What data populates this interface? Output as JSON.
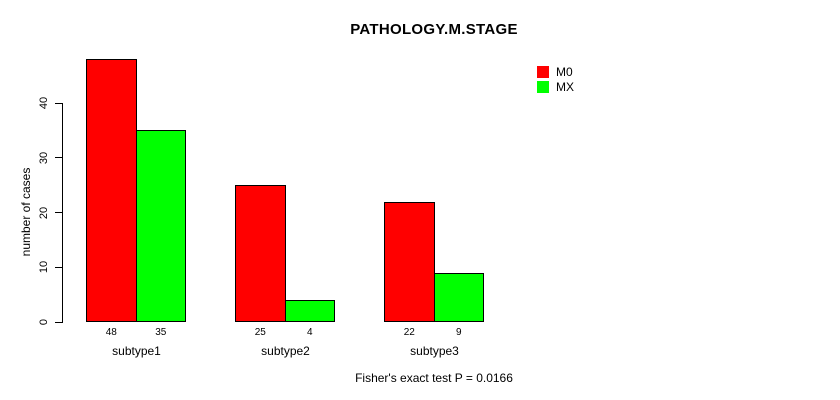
{
  "chart_data": {
    "type": "bar",
    "title": "PATHOLOGY.M.STAGE",
    "categories": [
      "subtype1",
      "subtype2",
      "subtype3"
    ],
    "series": [
      {
        "name": "M0",
        "color": "#FF0000",
        "values": [
          48,
          25,
          22
        ]
      },
      {
        "name": "MX",
        "color": "#00FF00",
        "values": [
          35,
          4,
          9
        ]
      }
    ],
    "xlabel": "",
    "ylabel": "number of cases",
    "yticks": [
      0,
      10,
      20,
      30,
      40
    ],
    "ylim": [
      0,
      48
    ],
    "bar_value_labels": [
      [
        48,
        35
      ],
      [
        25,
        4
      ],
      [
        22,
        9
      ]
    ],
    "annotation": "Fisher's exact test P = 0.0166",
    "legend_position": "top-right",
    "grid": false,
    "bar_border_color": "#000000",
    "text_color": "#000000",
    "background": "#FFFFFF"
  }
}
